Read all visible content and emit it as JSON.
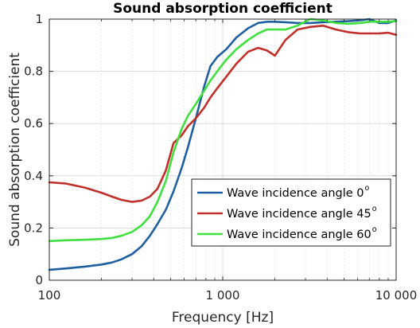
{
  "chart_data": {
    "type": "line",
    "title": "Sound absorption coefficient",
    "xlabel": "Frequency [Hz]",
    "ylabel": "Sound absorption coefficient",
    "xscale": "log",
    "xlim": [
      100,
      10000
    ],
    "ylim": [
      0,
      1
    ],
    "xticks": [
      100,
      1000,
      10000
    ],
    "xtick_labels": [
      "100",
      "1 000",
      "10 000"
    ],
    "yticks": [
      0,
      0.2,
      0.4,
      0.6,
      0.8,
      1
    ],
    "ytick_labels": [
      "0",
      "0.2",
      "0.4",
      "0.6",
      "0.8",
      "1"
    ],
    "grid": true,
    "minor_grid_x": true,
    "legend_position": "bottom-right",
    "series": [
      {
        "name": "Wave incidence angle 0",
        "name_superscript": "o",
        "color": "#1f5f9f",
        "x": [
          100,
          125,
          160,
          200,
          230,
          260,
          300,
          340,
          380,
          420,
          470,
          520,
          580,
          630,
          700,
          780,
          850,
          930,
          1050,
          1200,
          1400,
          1600,
          1800,
          2000,
          2300,
          2700,
          3200,
          3800,
          4500,
          5300,
          6200,
          7000,
          8000,
          9000,
          10000
        ],
        "y": [
          0.04,
          0.045,
          0.052,
          0.06,
          0.068,
          0.08,
          0.1,
          0.13,
          0.17,
          0.215,
          0.27,
          0.34,
          0.43,
          0.51,
          0.62,
          0.74,
          0.82,
          0.855,
          0.885,
          0.93,
          0.965,
          0.985,
          0.99,
          0.99,
          0.988,
          0.985,
          0.985,
          0.988,
          0.99,
          0.992,
          0.995,
          1.0,
          0.985,
          0.985,
          0.995
        ]
      },
      {
        "name": "Wave incidence angle 45",
        "name_superscript": "o",
        "color": "#c0302a",
        "x": [
          100,
          125,
          160,
          200,
          230,
          260,
          300,
          340,
          380,
          420,
          470,
          520,
          580,
          630,
          700,
          780,
          850,
          930,
          1050,
          1200,
          1400,
          1600,
          1800,
          2000,
          2300,
          2700,
          3200,
          3800,
          4500,
          5300,
          6200,
          7000,
          8000,
          9000,
          10000
        ],
        "y": [
          0.375,
          0.37,
          0.355,
          0.335,
          0.32,
          0.308,
          0.3,
          0.305,
          0.32,
          0.35,
          0.42,
          0.525,
          0.555,
          0.59,
          0.62,
          0.66,
          0.7,
          0.735,
          0.78,
          0.83,
          0.875,
          0.89,
          0.88,
          0.86,
          0.92,
          0.96,
          0.97,
          0.975,
          0.96,
          0.95,
          0.945,
          0.945,
          0.945,
          0.948,
          0.94
        ]
      },
      {
        "name": "Wave incidence angle 60",
        "name_superscript": "o",
        "color": "#3fe03f",
        "x": [
          100,
          125,
          160,
          200,
          230,
          260,
          300,
          340,
          380,
          420,
          470,
          520,
          580,
          630,
          700,
          780,
          850,
          930,
          1050,
          1200,
          1400,
          1600,
          1800,
          2000,
          2300,
          2700,
          3200,
          3800,
          4500,
          5300,
          6200,
          7000,
          8000,
          9000,
          10000
        ],
        "y": [
          0.15,
          0.153,
          0.155,
          0.158,
          0.162,
          0.17,
          0.185,
          0.21,
          0.245,
          0.3,
          0.38,
          0.49,
          0.58,
          0.63,
          0.675,
          0.725,
          0.765,
          0.8,
          0.845,
          0.885,
          0.92,
          0.945,
          0.96,
          0.96,
          0.96,
          0.975,
          1.0,
          0.995,
          0.985,
          0.982,
          0.985,
          0.99,
          0.99,
          0.99,
          0.992
        ]
      }
    ]
  }
}
